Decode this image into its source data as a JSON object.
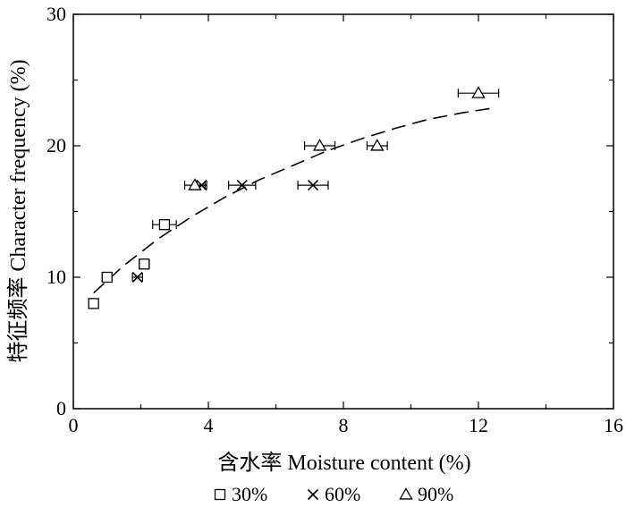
{
  "chart_data": {
    "type": "scatter",
    "title": "",
    "xlabel": "含水率 Moisture content (%)",
    "ylabel": "特征频率 Character frequency (%)",
    "xlim": [
      0,
      16
    ],
    "ylim": [
      0,
      30
    ],
    "x_ticks": [
      "0",
      "4",
      "8",
      "12",
      "16"
    ],
    "y_ticks": [
      "0",
      "10",
      "20",
      "30"
    ],
    "grid": false,
    "legend_position": "bottom",
    "series": [
      {
        "name": "30%",
        "marker": "square",
        "points": [
          {
            "x": 0.6,
            "y": 8,
            "xerr": 0
          },
          {
            "x": 1.0,
            "y": 10,
            "xerr": 0
          },
          {
            "x": 2.1,
            "y": 11,
            "xerr": 0.15
          },
          {
            "x": 2.7,
            "y": 14,
            "xerr": 0.35
          }
        ]
      },
      {
        "name": "60%",
        "marker": "cross",
        "points": [
          {
            "x": 1.9,
            "y": 10,
            "xerr": 0.15
          },
          {
            "x": 3.8,
            "y": 17,
            "xerr": 0.15
          },
          {
            "x": 5.0,
            "y": 17,
            "xerr": 0.4
          },
          {
            "x": 7.1,
            "y": 17,
            "xerr": 0.45
          }
        ]
      },
      {
        "name": "90%",
        "marker": "triangle",
        "points": [
          {
            "x": 3.6,
            "y": 17,
            "xerr": 0.3
          },
          {
            "x": 7.3,
            "y": 20,
            "xerr": 0.45
          },
          {
            "x": 9.0,
            "y": 20,
            "xerr": 0.3
          },
          {
            "x": 12.0,
            "y": 24,
            "xerr": 0.6
          }
        ]
      }
    ],
    "trend_line": {
      "style": "dashed",
      "x": [
        0.6,
        1.5,
        2.5,
        3.5,
        4.5,
        5.5,
        6.5,
        7.5,
        8.5,
        9.5,
        10.5,
        11.5,
        12.5
      ],
      "y": [
        8.8,
        10.9,
        12.9,
        14.6,
        16.1,
        17.4,
        18.5,
        19.6,
        20.5,
        21.3,
        22.0,
        22.5,
        22.9
      ]
    }
  }
}
